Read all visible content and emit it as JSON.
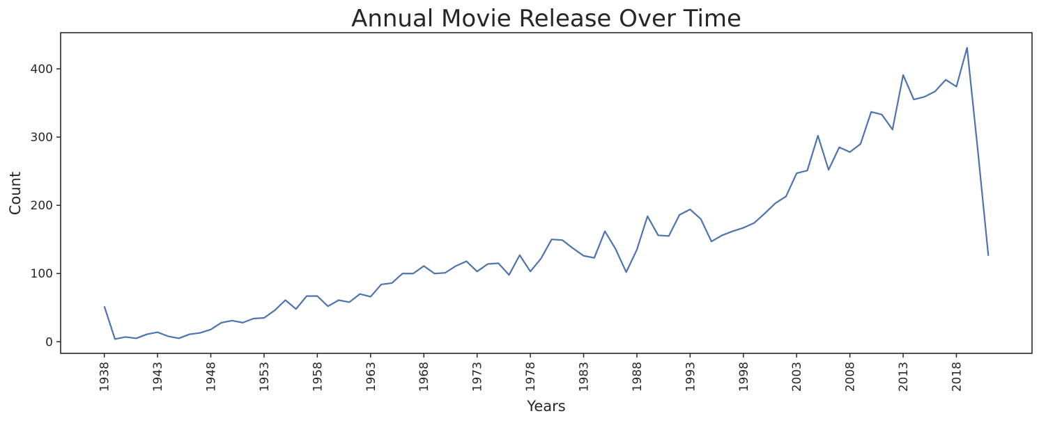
{
  "chart_data": {
    "type": "line",
    "title": "Annual Movie Release Over Time",
    "xlabel": "Years",
    "ylabel": "Count",
    "xlim": [
      1933.9,
      2025.1
    ],
    "ylim": [
      -17,
      453
    ],
    "x_ticks": [
      1938,
      1943,
      1948,
      1953,
      1958,
      1963,
      1968,
      1973,
      1978,
      1983,
      1988,
      1993,
      1998,
      2003,
      2008,
      2013,
      2018
    ],
    "y_ticks": [
      0,
      100,
      200,
      300,
      400
    ],
    "grid": false,
    "line_color": "#4c72b0",
    "series": [
      {
        "x": [
          1938,
          1939,
          1940,
          1941,
          1942,
          1943,
          1944,
          1945,
          1946,
          1947,
          1948,
          1949,
          1950,
          1951,
          1952,
          1953,
          1954,
          1955,
          1956,
          1957,
          1958,
          1959,
          1960,
          1961,
          1962,
          1963,
          1964,
          1965,
          1966,
          1967,
          1968,
          1969,
          1970,
          1971,
          1972,
          1973,
          1974,
          1975,
          1976,
          1977,
          1978,
          1979,
          1980,
          1981,
          1982,
          1983,
          1984,
          1985,
          1986,
          1987,
          1988,
          1989,
          1990,
          1991,
          1992,
          1993,
          1994,
          1995,
          1996,
          1997,
          1998,
          1999,
          2000,
          2001,
          2002,
          2003,
          2004,
          2005,
          2006,
          2007,
          2008,
          2009,
          2010,
          2011,
          2012,
          2013,
          2014,
          2015,
          2016,
          2017,
          2018,
          2019,
          2020,
          2021
        ],
        "values": [
          52,
          4,
          7,
          5,
          11,
          14,
          8,
          5,
          11,
          13,
          18,
          28,
          31,
          28,
          34,
          35,
          46,
          61,
          48,
          67,
          67,
          52,
          61,
          58,
          70,
          66,
          84,
          86,
          100,
          100,
          111,
          100,
          101,
          111,
          118,
          103,
          114,
          115,
          98,
          127,
          103,
          122,
          150,
          149,
          137,
          126,
          123,
          162,
          136,
          102,
          135,
          184,
          156,
          155,
          186,
          194,
          180,
          147,
          156,
          162,
          167,
          174,
          188,
          203,
          213,
          247,
          251,
          302,
          252,
          285,
          278,
          290,
          337,
          333,
          311,
          391,
          355,
          359,
          367,
          384,
          374,
          431,
          282,
          126
        ]
      }
    ]
  }
}
